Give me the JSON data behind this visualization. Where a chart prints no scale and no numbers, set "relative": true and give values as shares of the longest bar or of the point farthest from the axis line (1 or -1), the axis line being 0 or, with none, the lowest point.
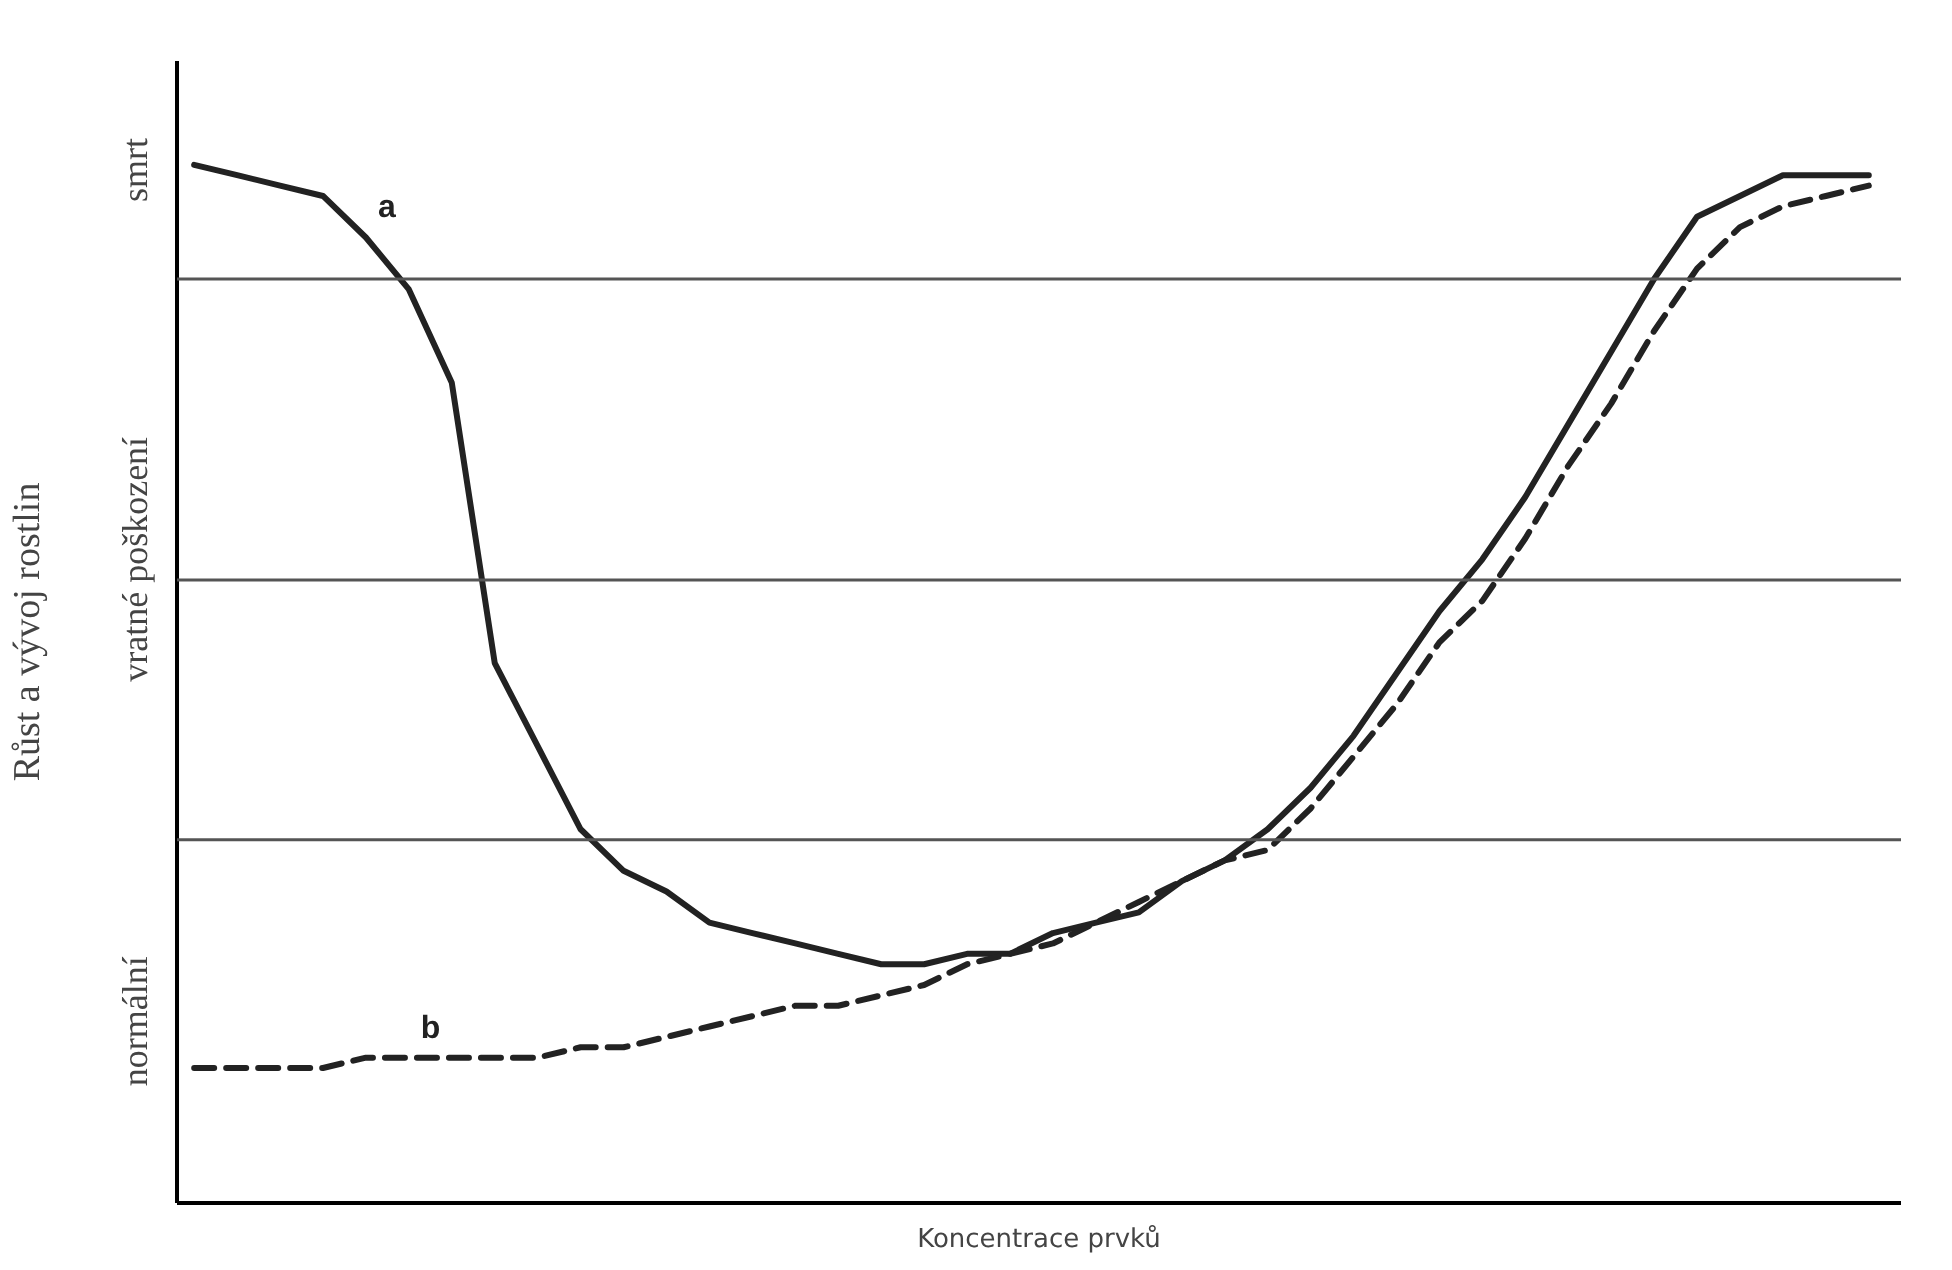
{
  "chart_data": {
    "type": "line",
    "relative": true,
    "xlabel": "Koncentrace prvků",
    "ylabel": "Růst a vývoj rostlin",
    "grid": false,
    "legend": false,
    "categories": [
      null,
      null,
      null,
      null,
      null,
      null,
      null,
      null,
      null,
      null,
      null,
      null,
      null,
      null,
      null,
      null,
      null,
      null,
      null,
      null,
      null,
      null,
      null,
      null,
      null,
      null,
      null,
      null,
      null,
      null,
      null,
      null,
      null,
      null,
      null,
      null,
      null,
      null,
      null,
      null
    ],
    "series": [
      {
        "name": "a",
        "color": "#222222",
        "line_style": "solid",
        "values": [
          1.0,
          0.99,
          0.98,
          0.97,
          0.93,
          0.88,
          0.79,
          0.52,
          0.44,
          0.36,
          0.32,
          0.3,
          0.27,
          0.26,
          0.25,
          0.24,
          0.23,
          0.23,
          0.24,
          0.24,
          0.26,
          0.27,
          0.28,
          0.31,
          0.33,
          0.36,
          0.4,
          0.45,
          0.51,
          0.57,
          0.62,
          0.68,
          0.75,
          0.82,
          0.89,
          0.95,
          0.97,
          0.99,
          0.99,
          0.99
        ]
      },
      {
        "name": "b",
        "color": "#222222",
        "line_style": "dashed",
        "values": [
          0.13,
          0.13,
          0.13,
          0.13,
          0.14,
          0.14,
          0.14,
          0.14,
          0.14,
          0.15,
          0.15,
          0.16,
          0.17,
          0.18,
          0.19,
          0.19,
          0.2,
          0.21,
          0.23,
          0.24,
          0.25,
          0.27,
          0.29,
          0.31,
          0.33,
          0.34,
          0.38,
          0.43,
          0.48,
          0.54,
          0.58,
          0.64,
          0.71,
          0.77,
          0.84,
          0.9,
          0.94,
          0.96,
          0.97,
          0.98
        ]
      }
    ],
    "ref_lines": [
      {
        "axis": "y",
        "value": 0.35,
        "color": "#555555"
      },
      {
        "axis": "y",
        "value": 0.6,
        "color": "#555555"
      },
      {
        "axis": "y",
        "value": 0.89,
        "color": "#555555"
      }
    ],
    "annotations": [
      "normální",
      "vratné poškození",
      "smrt"
    ]
  }
}
